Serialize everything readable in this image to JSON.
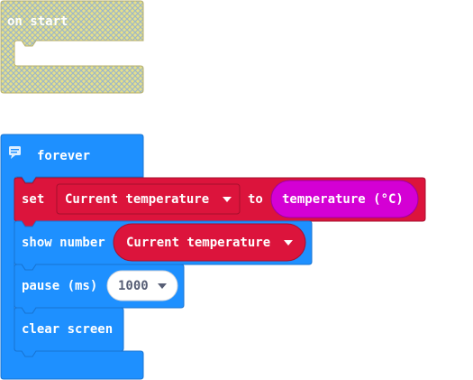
{
  "colors": {
    "on_start_fill": "#e6e08a",
    "on_start_hatch": "#9fb8c6",
    "on_start_border": "#b8b06c",
    "forever_blue": "#1e90ff",
    "forever_border": "#1873d1",
    "variable_red": "#dc143c",
    "variable_border": "#a60f2d",
    "sensor_magenta": "#d400d4",
    "sensor_border": "#a000a0",
    "pill_white": "#ffffff",
    "pill_text": "#575e75"
  },
  "blocks": {
    "on_start": {
      "label": "on start"
    },
    "forever": {
      "label": "forever",
      "comment_icon": "comment-icon"
    },
    "set_var": {
      "label": "set",
      "variable": "Current temperature",
      "to_label": "to",
      "sensor": "temperature (°C)"
    },
    "show_number": {
      "label": "show number",
      "variable": "Current temperature"
    },
    "pause": {
      "label": "pause (ms)",
      "value": "1000"
    },
    "clear_screen": {
      "label": "clear screen"
    }
  },
  "icons": {
    "dropdown": "caret-down-icon",
    "comment": "comment-icon"
  }
}
